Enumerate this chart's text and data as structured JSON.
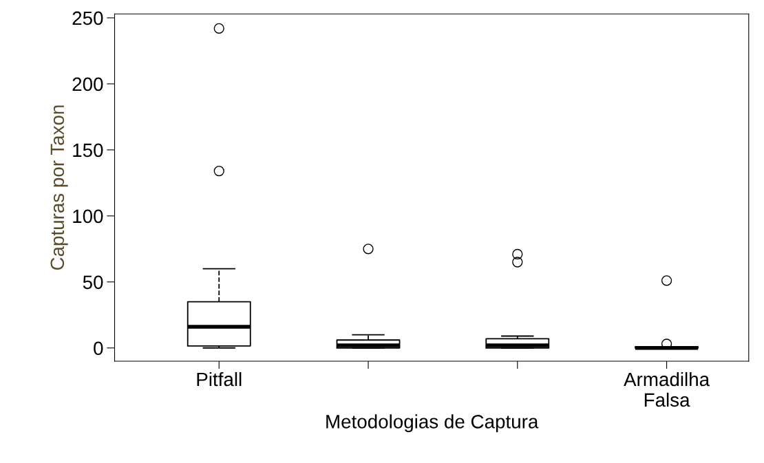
{
  "chart_data": {
    "type": "box",
    "xlabel": "Metodologias de Captura",
    "ylabel": "Capturas por Taxon",
    "categories": [
      "Pitfall",
      null,
      null,
      "Armadilha\nFalsa"
    ],
    "boxes": [
      {
        "low": 0,
        "q1": 1.5,
        "median": 16,
        "q3": 35,
        "high": 60,
        "outliers": [
          134,
          242
        ]
      },
      {
        "low": 0,
        "q1": 0,
        "median": 2,
        "q3": 6,
        "high": 10,
        "outliers": [
          75
        ]
      },
      {
        "low": 0,
        "q1": 0,
        "median": 2,
        "q3": 7,
        "high": 9,
        "outliers": [
          65,
          71
        ]
      },
      {
        "low": 0,
        "q1": 0,
        "median": 0,
        "q3": 1,
        "high": 1,
        "outliers": [
          3,
          51
        ]
      }
    ],
    "ylim": [
      -10,
      253
    ],
    "yticks": [
      0,
      50,
      100,
      150,
      200,
      250
    ],
    "grid": false
  }
}
